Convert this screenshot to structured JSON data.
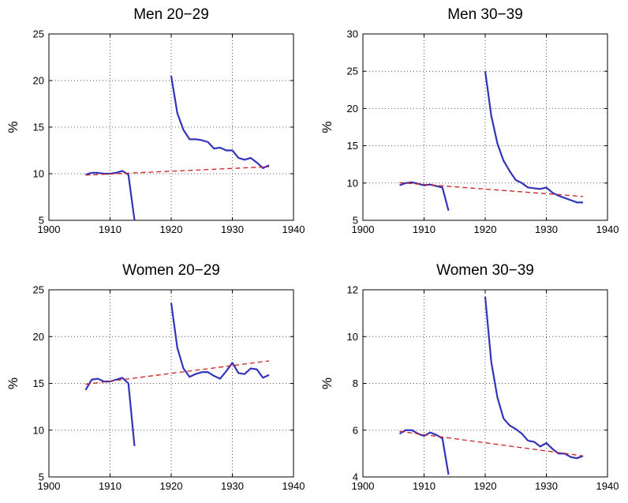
{
  "chart_data": [
    {
      "type": "line",
      "title": "Men 20−29",
      "ylabel": "%",
      "xlabel": "",
      "xlim": [
        1900,
        1940
      ],
      "ylim": [
        5,
        25
      ],
      "xticks": [
        "1900",
        "1910",
        "1920",
        "1930",
        "1940"
      ],
      "yticks": [
        "5",
        "10",
        "15",
        "20",
        "25"
      ],
      "grid": true,
      "series": [
        {
          "style": "solid",
          "color": "#3333bb",
          "x": [
            1906,
            1907,
            1908,
            1909,
            1910,
            1911,
            1912,
            1913,
            1914
          ],
          "y": [
            9.9,
            10.1,
            10.1,
            10.0,
            10.0,
            10.1,
            10.3,
            9.9,
            5.0
          ]
        },
        {
          "style": "solid",
          "color": "#3333bb",
          "x": [
            1920,
            1921,
            1922,
            1923,
            1924,
            1925,
            1926,
            1927,
            1928,
            1929,
            1930,
            1931,
            1932,
            1933,
            1934,
            1935,
            1936
          ],
          "y": [
            20.5,
            16.5,
            14.7,
            13.7,
            13.7,
            13.6,
            13.4,
            12.7,
            12.8,
            12.5,
            12.5,
            11.7,
            11.5,
            11.7,
            11.2,
            10.6,
            10.9
          ]
        },
        {
          "style": "dashed",
          "color": "#cc2222",
          "x": [
            1906,
            1936
          ],
          "y": [
            9.85,
            10.75
          ]
        }
      ]
    },
    {
      "type": "line",
      "title": "Men 30−39",
      "ylabel": "%",
      "xlabel": "",
      "xlim": [
        1900,
        1940
      ],
      "ylim": [
        5,
        30
      ],
      "xticks": [
        "1900",
        "1910",
        "1920",
        "1930",
        "1940"
      ],
      "yticks": [
        "5",
        "10",
        "15",
        "20",
        "25",
        "30"
      ],
      "grid": true,
      "series": [
        {
          "style": "solid",
          "color": "#3333bb",
          "x": [
            1906,
            1907,
            1908,
            1909,
            1910,
            1911,
            1912,
            1913,
            1914
          ],
          "y": [
            9.7,
            10.0,
            10.1,
            9.9,
            9.7,
            9.8,
            9.6,
            9.4,
            6.3
          ]
        },
        {
          "style": "solid",
          "color": "#3333bb",
          "x": [
            1920,
            1921,
            1922,
            1923,
            1924,
            1925,
            1926,
            1927,
            1928,
            1929,
            1930,
            1931,
            1932,
            1933,
            1934,
            1935,
            1936
          ],
          "y": [
            25.0,
            19.0,
            15.3,
            13.0,
            11.6,
            10.4,
            10.0,
            9.4,
            9.3,
            9.2,
            9.4,
            8.7,
            8.3,
            8.0,
            7.7,
            7.4,
            7.4
          ]
        },
        {
          "style": "dashed",
          "color": "#cc2222",
          "x": [
            1906,
            1936
          ],
          "y": [
            10.05,
            8.2
          ]
        }
      ]
    },
    {
      "type": "line",
      "title": "Women 20−29",
      "ylabel": "%",
      "xlabel": "",
      "xlim": [
        1900,
        1940
      ],
      "ylim": [
        5,
        25
      ],
      "xticks": [
        "1900",
        "1910",
        "1920",
        "1930",
        "1940"
      ],
      "yticks": [
        "5",
        "10",
        "15",
        "20",
        "25"
      ],
      "grid": true,
      "series": [
        {
          "style": "solid",
          "color": "#3333bb",
          "x": [
            1906,
            1907,
            1908,
            1909,
            1910,
            1911,
            1912,
            1913,
            1914
          ],
          "y": [
            14.3,
            15.4,
            15.5,
            15.2,
            15.2,
            15.4,
            15.6,
            15.0,
            8.3
          ]
        },
        {
          "style": "solid",
          "color": "#3333bb",
          "x": [
            1920,
            1921,
            1922,
            1923,
            1924,
            1925,
            1926,
            1927,
            1928,
            1929,
            1930,
            1931,
            1932,
            1933,
            1934,
            1935,
            1936
          ],
          "y": [
            23.6,
            18.8,
            16.6,
            15.7,
            16.0,
            16.2,
            16.2,
            15.8,
            15.5,
            16.3,
            17.2,
            16.1,
            16.0,
            16.6,
            16.5,
            15.6,
            15.9
          ]
        },
        {
          "style": "dashed",
          "color": "#cc2222",
          "x": [
            1906,
            1936
          ],
          "y": [
            14.9,
            17.4
          ]
        }
      ]
    },
    {
      "type": "line",
      "title": "Women 30−39",
      "ylabel": "%",
      "xlabel": "",
      "xlim": [
        1900,
        1940
      ],
      "ylim": [
        4,
        12
      ],
      "xticks": [
        "1900",
        "1910",
        "1920",
        "1930",
        "1940"
      ],
      "yticks": [
        "4",
        "6",
        "8",
        "10",
        "12"
      ],
      "grid": true,
      "series": [
        {
          "style": "solid",
          "color": "#3333bb",
          "x": [
            1906,
            1907,
            1908,
            1909,
            1910,
            1911,
            1912,
            1913,
            1914
          ],
          "y": [
            5.85,
            6.0,
            6.0,
            5.85,
            5.75,
            5.9,
            5.8,
            5.65,
            4.1
          ]
        },
        {
          "style": "solid",
          "color": "#3333bb",
          "x": [
            1920,
            1921,
            1922,
            1923,
            1924,
            1925,
            1926,
            1927,
            1928,
            1929,
            1930,
            1931,
            1932,
            1933,
            1934,
            1935,
            1936
          ],
          "y": [
            11.7,
            8.9,
            7.4,
            6.5,
            6.2,
            6.05,
            5.85,
            5.55,
            5.5,
            5.3,
            5.45,
            5.2,
            5.0,
            5.0,
            4.85,
            4.8,
            4.9
          ]
        },
        {
          "style": "dashed",
          "color": "#cc2222",
          "x": [
            1906,
            1936
          ],
          "y": [
            5.95,
            4.9
          ]
        }
      ]
    }
  ]
}
